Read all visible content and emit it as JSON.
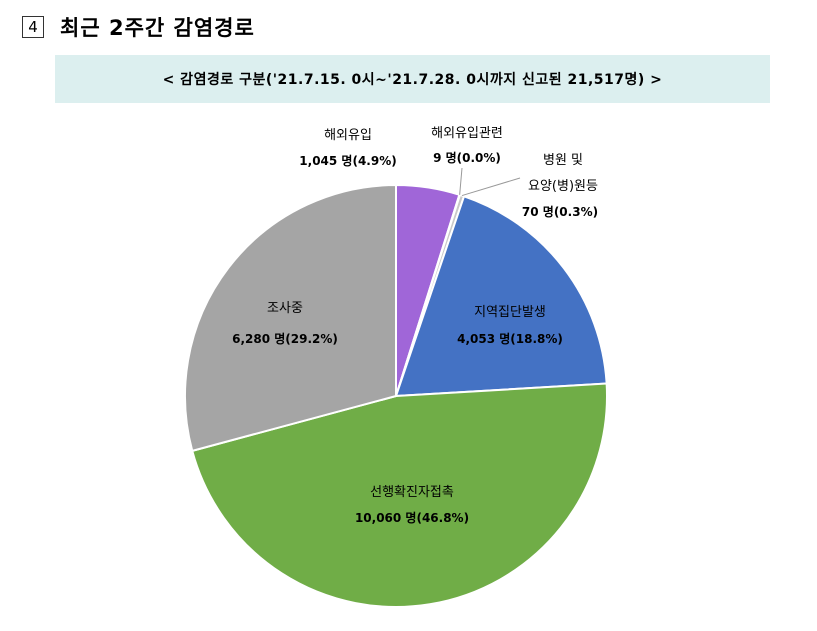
{
  "heading": {
    "number": "4",
    "title": "최근 2주간 감염경로"
  },
  "banner": {
    "text": "< 감염경로 구분('21.7.15. 0시~'21.7.28. 0시까지 신고된 21,517명) >"
  },
  "chart_data": {
    "type": "pie",
    "title": "",
    "start_angle_deg": 0,
    "direction": "clockwise",
    "total": 21517,
    "slices": [
      {
        "name": "해외유입",
        "value": 1045,
        "value_label": "1,045 명(4.9%)",
        "color": "#a066d8"
      },
      {
        "name": "해외유입관련",
        "value": 9,
        "value_label": "9 명(0.0%)",
        "color": "#f0b400"
      },
      {
        "name": "병원 및 요양(병)원등",
        "name_lines": [
          "병원 및",
          "요양(병)원등"
        ],
        "value": 70,
        "value_label": "70 명(0.3%)",
        "color": "#c9c9c9"
      },
      {
        "name": "지역집단발생",
        "value": 4053,
        "value_label": "4,053 명(18.8%)",
        "color": "#4472c4"
      },
      {
        "name": "선행확진자접촉",
        "value": 10060,
        "value_label": "10,060 명(46.8%)",
        "color": "#70ad47"
      },
      {
        "name": "조사중",
        "value": 6280,
        "value_label": "6,280 명(29.2%)",
        "color": "#a5a5a5"
      }
    ]
  }
}
